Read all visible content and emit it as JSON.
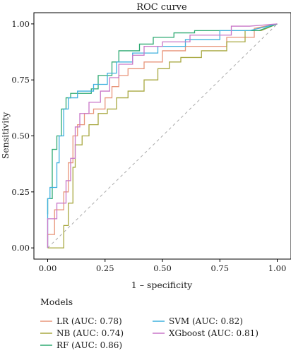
{
  "chart_data": {
    "type": "line",
    "title": "ROC curve",
    "xlabel": "1 – specificity",
    "ylabel": "Sensitivity",
    "xlim": [
      -0.06,
      1.06
    ],
    "ylim": [
      -0.05,
      1.05
    ],
    "xticks": [
      0.0,
      0.25,
      0.5,
      0.75,
      1.0
    ],
    "xtick_labels": [
      "0.00",
      "0.25",
      "0.50",
      "0.75",
      "1.00"
    ],
    "yticks": [
      0.0,
      0.25,
      0.5,
      0.75,
      1.0
    ],
    "ytick_labels": [
      "0.00",
      "0.25",
      "0.50",
      "0.75",
      "1.00"
    ],
    "grid": false,
    "reference_line": {
      "style": "dashed",
      "color": "#aaaaaa",
      "points": [
        [
          0,
          0
        ],
        [
          1,
          1
        ]
      ]
    },
    "legend": {
      "title": "Models",
      "position": "bottom"
    },
    "series": [
      {
        "name": "LR (AUC: 0.78)",
        "color": "#E8957A",
        "points": [
          [
            0,
            0
          ],
          [
            0,
            0.06
          ],
          [
            0.03,
            0.06
          ],
          [
            0.03,
            0.17
          ],
          [
            0.07,
            0.17
          ],
          [
            0.07,
            0.25
          ],
          [
            0.09,
            0.25
          ],
          [
            0.09,
            0.38
          ],
          [
            0.11,
            0.38
          ],
          [
            0.11,
            0.5
          ],
          [
            0.13,
            0.5
          ],
          [
            0.13,
            0.55
          ],
          [
            0.16,
            0.55
          ],
          [
            0.16,
            0.6
          ],
          [
            0.2,
            0.6
          ],
          [
            0.2,
            0.62
          ],
          [
            0.25,
            0.62
          ],
          [
            0.25,
            0.67
          ],
          [
            0.28,
            0.67
          ],
          [
            0.28,
            0.72
          ],
          [
            0.31,
            0.72
          ],
          [
            0.31,
            0.77
          ],
          [
            0.35,
            0.77
          ],
          [
            0.35,
            0.8
          ],
          [
            0.42,
            0.8
          ],
          [
            0.42,
            0.83
          ],
          [
            0.5,
            0.83
          ],
          [
            0.5,
            0.88
          ],
          [
            0.6,
            0.88
          ],
          [
            0.6,
            0.9
          ],
          [
            0.78,
            0.9
          ],
          [
            0.78,
            0.94
          ],
          [
            0.9,
            0.94
          ],
          [
            0.9,
            0.98
          ],
          [
            1,
            1
          ]
        ]
      },
      {
        "name": "NB (AUC: 0.74)",
        "color": "#A8A840",
        "points": [
          [
            0,
            0
          ],
          [
            0.07,
            0
          ],
          [
            0.07,
            0.1
          ],
          [
            0.09,
            0.1
          ],
          [
            0.09,
            0.2
          ],
          [
            0.11,
            0.2
          ],
          [
            0.11,
            0.36
          ],
          [
            0.12,
            0.36
          ],
          [
            0.12,
            0.46
          ],
          [
            0.15,
            0.46
          ],
          [
            0.15,
            0.5
          ],
          [
            0.18,
            0.5
          ],
          [
            0.18,
            0.55
          ],
          [
            0.22,
            0.55
          ],
          [
            0.22,
            0.6
          ],
          [
            0.26,
            0.6
          ],
          [
            0.26,
            0.62
          ],
          [
            0.3,
            0.62
          ],
          [
            0.3,
            0.67
          ],
          [
            0.35,
            0.67
          ],
          [
            0.35,
            0.7
          ],
          [
            0.42,
            0.7
          ],
          [
            0.42,
            0.75
          ],
          [
            0.48,
            0.75
          ],
          [
            0.48,
            0.8
          ],
          [
            0.53,
            0.8
          ],
          [
            0.53,
            0.83
          ],
          [
            0.58,
            0.83
          ],
          [
            0.58,
            0.85
          ],
          [
            0.67,
            0.85
          ],
          [
            0.67,
            0.88
          ],
          [
            0.78,
            0.88
          ],
          [
            0.78,
            0.92
          ],
          [
            0.86,
            0.92
          ],
          [
            0.86,
            0.97
          ],
          [
            0.93,
            0.97
          ],
          [
            1,
            1
          ]
        ]
      },
      {
        "name": "RF (AUC: 0.86)",
        "color": "#2EAA72",
        "points": [
          [
            0,
            0.15
          ],
          [
            0,
            0.22
          ],
          [
            0.02,
            0.22
          ],
          [
            0.02,
            0.44
          ],
          [
            0.04,
            0.44
          ],
          [
            0.04,
            0.5
          ],
          [
            0.06,
            0.5
          ],
          [
            0.06,
            0.62
          ],
          [
            0.08,
            0.62
          ],
          [
            0.08,
            0.67
          ],
          [
            0.1,
            0.67
          ],
          [
            0.1,
            0.69
          ],
          [
            0.19,
            0.69
          ],
          [
            0.19,
            0.71
          ],
          [
            0.22,
            0.71
          ],
          [
            0.22,
            0.77
          ],
          [
            0.28,
            0.77
          ],
          [
            0.28,
            0.83
          ],
          [
            0.31,
            0.83
          ],
          [
            0.31,
            0.88
          ],
          [
            0.4,
            0.88
          ],
          [
            0.4,
            0.91
          ],
          [
            0.46,
            0.91
          ],
          [
            0.46,
            0.94
          ],
          [
            0.55,
            0.94
          ],
          [
            0.55,
            0.96
          ],
          [
            0.64,
            0.96
          ],
          [
            0.64,
            0.97
          ],
          [
            0.92,
            0.97
          ],
          [
            1,
            1
          ]
        ]
      },
      {
        "name": "SVM (AUC: 0.82)",
        "color": "#3FB0DE",
        "points": [
          [
            0,
            0
          ],
          [
            0,
            0.22
          ],
          [
            0.01,
            0.22
          ],
          [
            0.01,
            0.27
          ],
          [
            0.04,
            0.27
          ],
          [
            0.04,
            0.38
          ],
          [
            0.05,
            0.38
          ],
          [
            0.05,
            0.5
          ],
          [
            0.07,
            0.5
          ],
          [
            0.07,
            0.62
          ],
          [
            0.09,
            0.62
          ],
          [
            0.09,
            0.67
          ],
          [
            0.13,
            0.67
          ],
          [
            0.13,
            0.7
          ],
          [
            0.2,
            0.7
          ],
          [
            0.2,
            0.73
          ],
          [
            0.26,
            0.73
          ],
          [
            0.26,
            0.78
          ],
          [
            0.3,
            0.78
          ],
          [
            0.3,
            0.83
          ],
          [
            0.37,
            0.83
          ],
          [
            0.37,
            0.87
          ],
          [
            0.48,
            0.87
          ],
          [
            0.48,
            0.9
          ],
          [
            0.6,
            0.9
          ],
          [
            0.6,
            0.93
          ],
          [
            0.75,
            0.93
          ],
          [
            0.75,
            0.97
          ],
          [
            0.88,
            0.97
          ],
          [
            1,
            1
          ]
        ]
      },
      {
        "name": "XGboost (AUC: 0.81)",
        "color": "#C977C8",
        "points": [
          [
            0,
            0
          ],
          [
            0,
            0.13
          ],
          [
            0.04,
            0.13
          ],
          [
            0.04,
            0.2
          ],
          [
            0.08,
            0.2
          ],
          [
            0.08,
            0.3
          ],
          [
            0.1,
            0.3
          ],
          [
            0.1,
            0.4
          ],
          [
            0.12,
            0.4
          ],
          [
            0.12,
            0.54
          ],
          [
            0.14,
            0.54
          ],
          [
            0.14,
            0.6
          ],
          [
            0.18,
            0.6
          ],
          [
            0.18,
            0.65
          ],
          [
            0.23,
            0.65
          ],
          [
            0.23,
            0.7
          ],
          [
            0.27,
            0.7
          ],
          [
            0.27,
            0.76
          ],
          [
            0.31,
            0.76
          ],
          [
            0.31,
            0.82
          ],
          [
            0.37,
            0.82
          ],
          [
            0.37,
            0.86
          ],
          [
            0.42,
            0.86
          ],
          [
            0.42,
            0.9
          ],
          [
            0.5,
            0.9
          ],
          [
            0.5,
            0.92
          ],
          [
            0.62,
            0.92
          ],
          [
            0.62,
            0.95
          ],
          [
            0.8,
            0.95
          ],
          [
            0.8,
            0.99
          ],
          [
            0.88,
            0.99
          ],
          [
            1,
            1
          ]
        ]
      }
    ]
  }
}
